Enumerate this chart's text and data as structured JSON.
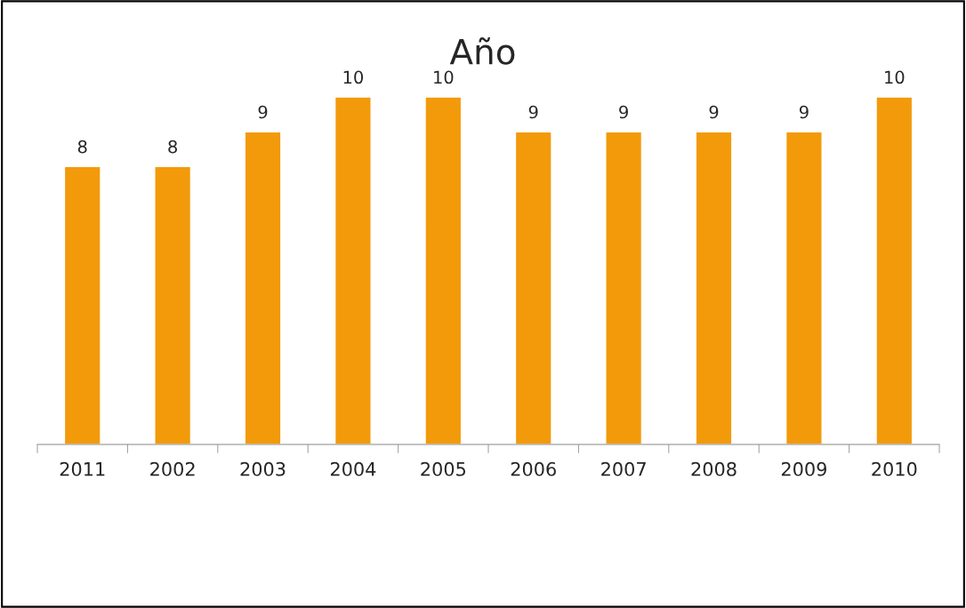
{
  "chart_data": {
    "type": "bar",
    "title": "Año",
    "categories": [
      "2011",
      "2002",
      "2003",
      "2004",
      "2005",
      "2006",
      "2007",
      "2008",
      "2009",
      "2010"
    ],
    "values": [
      8,
      8,
      9,
      10,
      10,
      9,
      9,
      9,
      9,
      10
    ],
    "color": "#f29a0a",
    "data_labels": true,
    "grid": false,
    "legend": false,
    "tick_labels": "x"
  }
}
